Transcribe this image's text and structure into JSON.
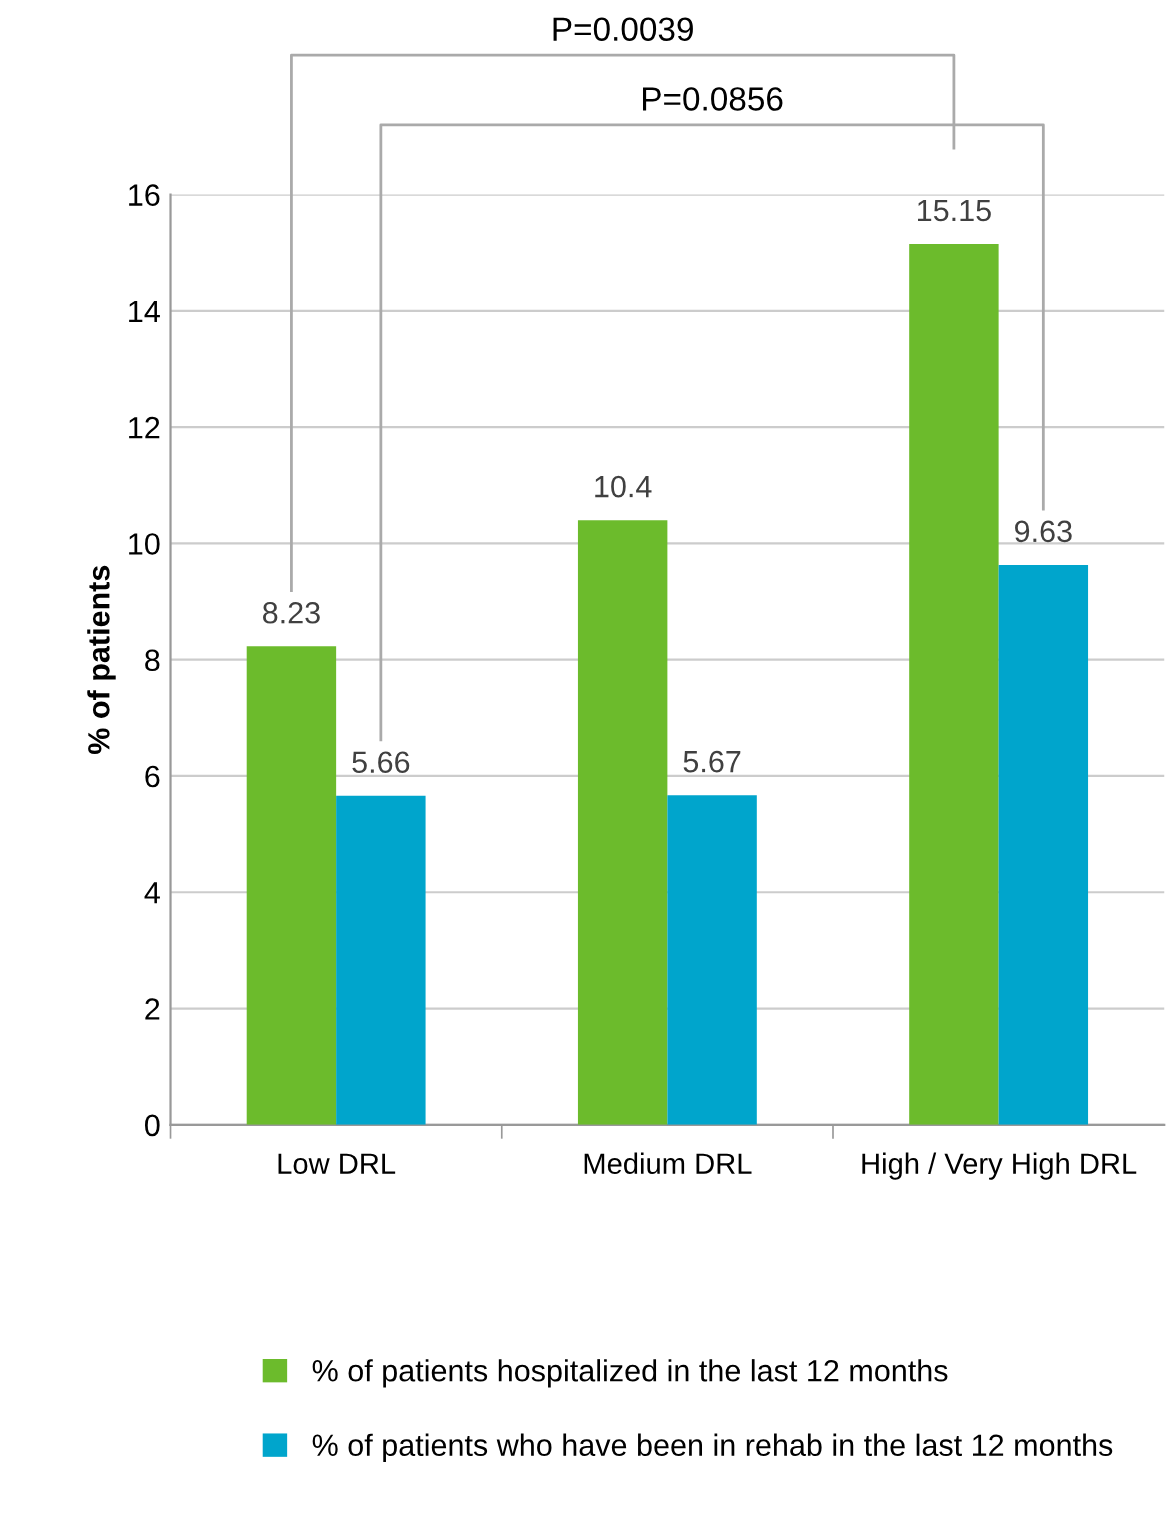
{
  "chart_data": {
    "type": "bar",
    "ylabel": "% of patients",
    "categories": [
      "Low DRL",
      "Medium DRL",
      "High / Very High DRL"
    ],
    "series": [
      {
        "name": "% of patients hospitalized in the last 12 months",
        "color": "#6cbb2c",
        "values": [
          8.23,
          10.4,
          15.15
        ]
      },
      {
        "name": "% of patients who have been in rehab in the last 12 months",
        "color": "#00a5cc",
        "values": [
          5.66,
          5.67,
          9.63
        ]
      }
    ],
    "ylim": [
      0,
      16
    ],
    "yticks": [
      0,
      2,
      4,
      6,
      8,
      10,
      12,
      14,
      16
    ],
    "grid": "y",
    "data_labels": true,
    "legend": "bottom",
    "annotations": [
      "P=0.0039",
      "P=0.0856"
    ]
  }
}
